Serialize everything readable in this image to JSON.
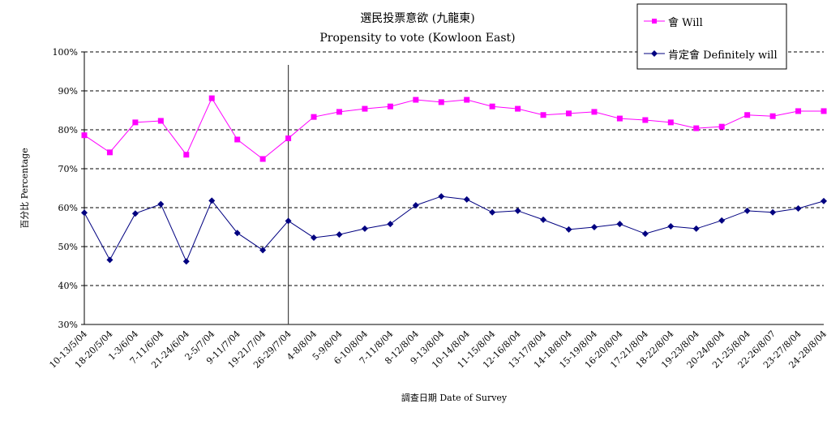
{
  "chart_data": {
    "type": "line",
    "title": "選民投票意欲 (九龍東)",
    "subtitle": "Propensity to vote (Kowloon East)",
    "xlabel": "調查日期 Date of Survey",
    "ylabel": "百分比 Percentage",
    "ylim": [
      30,
      100
    ],
    "yticks": [
      "30%",
      "40%",
      "50%",
      "60%",
      "70%",
      "80%",
      "90%",
      "100%"
    ],
    "grid": "horizontal dashed",
    "legend_placement": "top-right",
    "divider_at": "26-29/7/04",
    "categories": [
      "10-13/5/04",
      "18-20/5/04",
      "1-3/6/04",
      "7-11/6/04",
      "21-24/6/04",
      "2-5/7/04",
      "9-11/7/04",
      "19-21/7/04",
      "26-29/7/04",
      "4-8/8/04",
      "5-9/8/04",
      "6-10/8/04",
      "7-11/8/04",
      "8-12/8/04",
      "9-13/8/04",
      "10-14/8/04",
      "11-15/8/04",
      "12-16/8/04",
      "13-17/8/04",
      "14-18/8/04",
      "15-19/8/04",
      "16-20/8/04",
      "17-21/8/04",
      "18-22/8/04",
      "19-23/8/04",
      "20-24/8/04",
      "21-25/8/04",
      "22-26/8/07",
      "23-27/8/04",
      "24-28/8/04"
    ],
    "series": [
      {
        "name": "會 Will",
        "color": "#ff00ff",
        "marker": "square",
        "values": [
          78.6,
          74.2,
          81.9,
          82.3,
          73.6,
          88.1,
          77.5,
          72.5,
          77.8,
          83.3,
          84.6,
          85.4,
          86.0,
          87.7,
          87.1,
          87.7,
          86.0,
          85.4,
          83.8,
          84.2,
          84.6,
          82.9,
          82.5,
          81.9,
          80.4,
          80.8,
          83.8,
          83.5,
          84.8,
          84.8
        ]
      },
      {
        "name": "肯定會 Definitely will",
        "color": "#000080",
        "marker": "diamond",
        "values": [
          58.7,
          46.6,
          58.5,
          60.9,
          46.2,
          61.8,
          53.5,
          49.1,
          56.6,
          52.3,
          53.1,
          54.6,
          55.8,
          60.6,
          62.9,
          62.1,
          58.8,
          59.2,
          56.9,
          54.4,
          55.0,
          55.8,
          53.3,
          55.2,
          54.6,
          56.7,
          59.2,
          58.8,
          59.8,
          61.7
        ]
      }
    ]
  }
}
